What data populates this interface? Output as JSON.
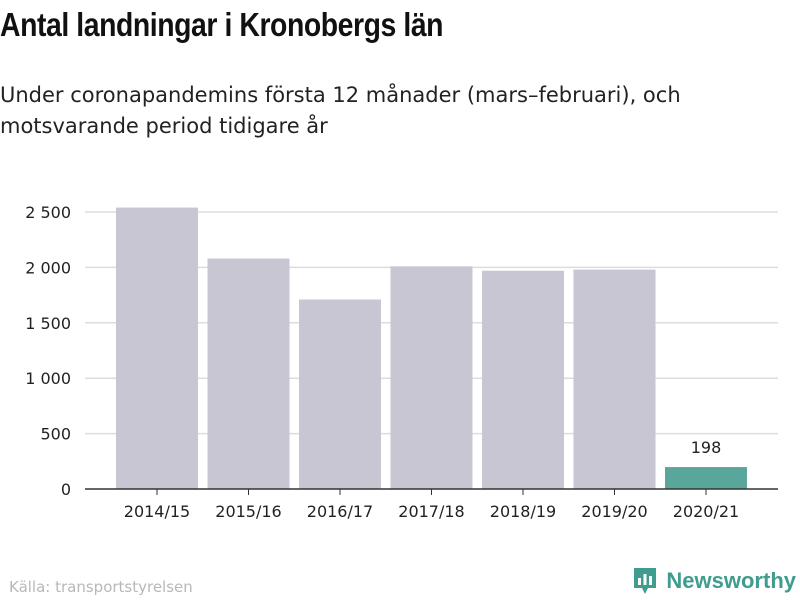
{
  "title": "Antal landningar i Kronobergs län",
  "subtitle": "Under coronapandemins första 12 månader (mars–februari), och motsvarande period tidigare år",
  "source": "Källa: transportstyrelsen",
  "brand": {
    "name": "Newsworthy",
    "icon": "newsworthy-logo-icon",
    "color": "#3f9c8f"
  },
  "chart_data": {
    "type": "bar",
    "categories": [
      "2014/15",
      "2015/16",
      "2016/17",
      "2017/18",
      "2018/19",
      "2019/20",
      "2020/21"
    ],
    "values": [
      2540,
      2080,
      1710,
      2010,
      1970,
      1980,
      198
    ],
    "ylim": [
      0,
      2500
    ],
    "yticks": [
      0,
      500,
      1000,
      1500,
      2000,
      2500
    ],
    "ytick_labels": [
      "0",
      "500",
      "1 000",
      "1 500",
      "2 000",
      "2 500"
    ],
    "data_labels": [
      {
        "index": 6,
        "text": "198"
      }
    ],
    "colors": {
      "default": "#c8c6d2",
      "highlight": "#5aa69a",
      "grid": "#dddddd",
      "axis": "#333333"
    },
    "highlight_index": 6,
    "grid": true,
    "legend": "none"
  }
}
